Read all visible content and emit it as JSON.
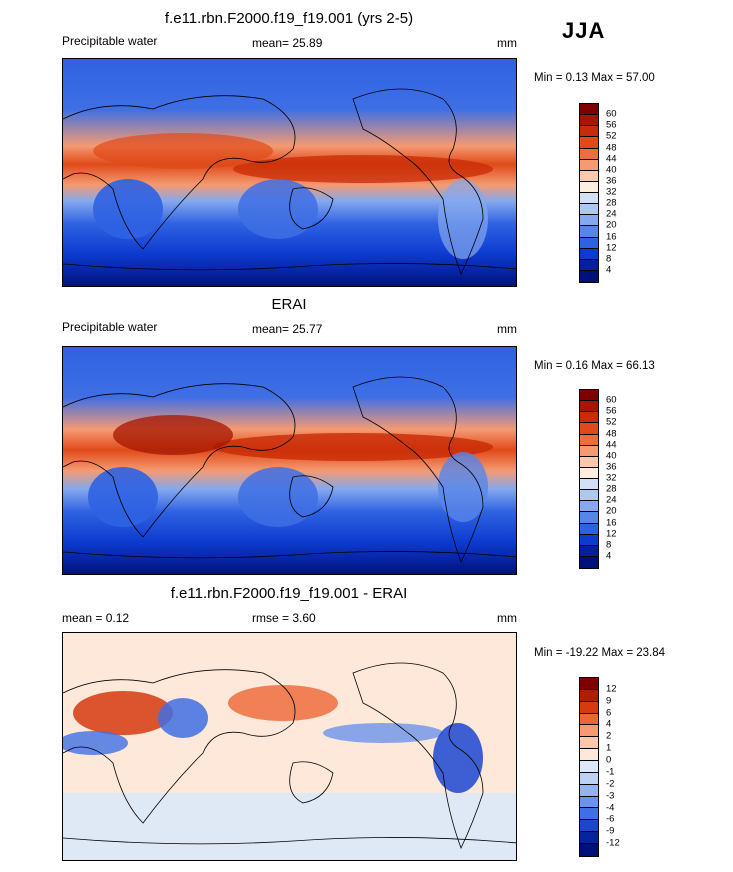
{
  "season": "JJA",
  "panels": [
    {
      "title": "f.e11.rbn.F2000.f19_f19.001 (yrs 2-5)",
      "left_label": "Precipitable water",
      "center_label": "mean=  25.89",
      "right_label": "mm",
      "minmax": "Min =   0.13 Max =  57.00",
      "levels": [
        "60",
        "56",
        "52",
        "48",
        "44",
        "40",
        "36",
        "32",
        "28",
        "24",
        "20",
        "16",
        "12",
        "8",
        "4"
      ],
      "colors": [
        "#7f0000",
        "#a51500",
        "#c82b06",
        "#e04a1a",
        "#ef6d3c",
        "#f59a72",
        "#fac8aa",
        "#fdeee0",
        "#d2e0f5",
        "#aec8f2",
        "#85a8ee",
        "#5786e9",
        "#2f62e2",
        "#0d3bd0",
        "#04209e",
        "#00107a"
      ]
    },
    {
      "title": "ERAI",
      "left_label": "Precipitable water",
      "center_label": "mean=  25.77",
      "right_label": "mm",
      "minmax": "Min =   0.16 Max =  66.13",
      "levels": [
        "60",
        "56",
        "52",
        "48",
        "44",
        "40",
        "36",
        "32",
        "28",
        "24",
        "20",
        "16",
        "12",
        "8",
        "4"
      ],
      "colors": [
        "#7f0000",
        "#a51500",
        "#c82b06",
        "#e04a1a",
        "#ef6d3c",
        "#f59a72",
        "#fac8aa",
        "#fdeee0",
        "#d2e0f5",
        "#aec8f2",
        "#85a8ee",
        "#5786e9",
        "#2f62e2",
        "#0d3bd0",
        "#04209e",
        "#00107a"
      ]
    },
    {
      "title": "f.e11.rbn.F2000.f19_f19.001 - ERAI",
      "left_label": "mean =   0.12",
      "center_label": "rmse =   3.60",
      "right_label": "mm",
      "minmax": "Min = -19.22 Max =  23.84",
      "levels": [
        "12",
        "9",
        "6",
        "4",
        "2",
        "1",
        "0",
        "-1",
        "-2",
        "-3",
        "-4",
        "-6",
        "-9",
        "-12"
      ],
      "colors": [
        "#7f0000",
        "#b01e00",
        "#d63a0e",
        "#ed6535",
        "#f59a72",
        "#fbc7aa",
        "#fde8da",
        "#dce8f7",
        "#bcd2f4",
        "#94b4ef",
        "#6c94eb",
        "#3f6fe4",
        "#1c46d2",
        "#06249e",
        "#00107a"
      ]
    }
  ],
  "chart_data": [
    {
      "type": "heatmap",
      "title": "f.e11.rbn.F2000.f19_f19.001 (yrs 2-5)",
      "variable": "Precipitable water",
      "units": "mm",
      "mean": 25.89,
      "min": 0.13,
      "max": 57.0,
      "contour_levels": [
        4,
        8,
        12,
        16,
        20,
        24,
        28,
        32,
        36,
        40,
        44,
        48,
        52,
        56,
        60
      ]
    },
    {
      "type": "heatmap",
      "title": "ERAI",
      "variable": "Precipitable water",
      "units": "mm",
      "mean": 25.77,
      "min": 0.16,
      "max": 66.13,
      "contour_levels": [
        4,
        8,
        12,
        16,
        20,
        24,
        28,
        32,
        36,
        40,
        44,
        48,
        52,
        56,
        60
      ]
    },
    {
      "type": "heatmap",
      "title": "f.e11.rbn.F2000.f19_f19.001 - ERAI",
      "units": "mm",
      "mean": 0.12,
      "rmse": 3.6,
      "min": -19.22,
      "max": 23.84,
      "contour_levels": [
        -12,
        -9,
        -6,
        -4,
        -3,
        -2,
        -1,
        0,
        1,
        2,
        4,
        6,
        9,
        12
      ]
    }
  ]
}
